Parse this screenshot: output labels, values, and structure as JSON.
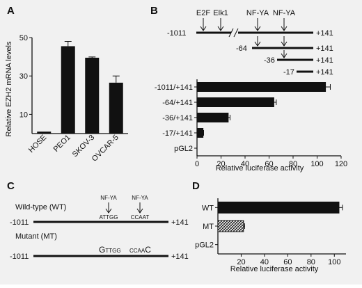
{
  "panels": {
    "A": "A",
    "B": "B",
    "C": "C",
    "D": "D"
  },
  "chart_data": [
    {
      "panel": "A",
      "type": "bar",
      "categories": [
        "HOSE",
        "PEO1",
        "SKOV-3",
        "OVCAR-5"
      ],
      "values": [
        1,
        45.5,
        39.5,
        26.5
      ],
      "errors": [
        0,
        2.5,
        0.4,
        3.5
      ],
      "ylabel": "Relative EZH2 mRNA levels",
      "ylim": [
        0,
        50
      ],
      "yticks": [
        10,
        30,
        50
      ],
      "ytick_labels": [
        "10",
        "30",
        "50"
      ],
      "bar_color": "#111111",
      "grid": false
    },
    {
      "panel": "B",
      "type": "bar",
      "orientation": "horizontal",
      "categories": [
        "-1011/+141",
        "-64/+141",
        "-36/+141",
        "-17/+141",
        "pGL2"
      ],
      "values": [
        107,
        64,
        26,
        5,
        0
      ],
      "errors": [
        4,
        2,
        1.5,
        0.5,
        0
      ],
      "xlabel": "Relative luciferase activity",
      "xlim": [
        0,
        120
      ],
      "xticks": [
        0,
        20,
        40,
        60,
        80,
        100,
        120
      ],
      "xtick_labels": [
        "0",
        "20",
        "40",
        "60",
        "80",
        "100",
        "120"
      ],
      "bar_color": "#111111",
      "grid": false
    },
    {
      "panel": "D",
      "type": "bar",
      "orientation": "horizontal",
      "categories": [
        "WT",
        "MT",
        "pGL2"
      ],
      "values": [
        104,
        22,
        0
      ],
      "errors": [
        3,
        1,
        0
      ],
      "bar_styles": [
        "solid",
        "hatched",
        "solid"
      ],
      "xlabel": "Relative luciferase activity",
      "xlim": [
        0,
        110
      ],
      "xticks": [
        20,
        40,
        60,
        80,
        100
      ],
      "xtick_labels": [
        "20",
        "40",
        "60",
        "80",
        "100"
      ],
      "bar_color": "#111111",
      "grid": false
    }
  ],
  "constructs": {
    "sites": [
      "E2F",
      "Elk1",
      "NF-YA",
      "NF-YA"
    ],
    "starts": [
      "-1011",
      "-64",
      "-36",
      "-17"
    ],
    "end": "+141"
  },
  "mutation": {
    "wt_label": "Wild-type (WT)",
    "mt_label": "Mutant (MT)",
    "site1": "NF-YA",
    "site2": "NF-YA",
    "wt_seq1": "ATTGG",
    "wt_seq2": "CCAAT",
    "mt_seq1_mut": "G",
    "mt_seq1_rest": "TTGG",
    "mt_seq2_rest": "CCAA",
    "mt_seq2_mut": "C",
    "start": "-1011",
    "end": "+141"
  }
}
